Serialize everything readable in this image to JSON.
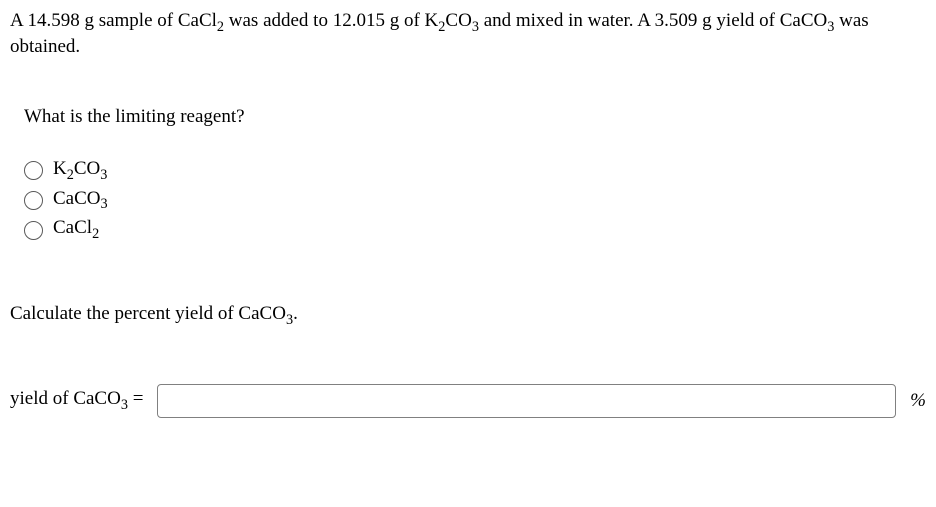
{
  "problem": {
    "prefix": "A ",
    "mass1": "14.598",
    "text1": " g sample of CaCl",
    "sub1": "2",
    "text2": " was added to ",
    "mass2": "12.015",
    "text3": " g of K",
    "sub2": "2",
    "text4": "CO",
    "sub3": "3",
    "text5": " and mixed in water. A ",
    "mass3": "3.509",
    "text6": " g yield of CaCO",
    "sub4": "3",
    "text7": " was obtained."
  },
  "q1": {
    "text": "What is the limiting reagent?"
  },
  "options": [
    {
      "p1": "K",
      "s1": "2",
      "p2": "CO",
      "s2": "3"
    },
    {
      "p1": "CaCO",
      "s1": "3",
      "p2": "",
      "s2": ""
    },
    {
      "p1": "CaCl",
      "s1": "2",
      "p2": "",
      "s2": ""
    }
  ],
  "q2": {
    "t1": "Calculate the percent yield of CaCO",
    "s1": "3",
    "t2": "."
  },
  "answer": {
    "l1": "yield of CaCO",
    "s1": "3",
    "l2": " =",
    "value": "",
    "unit": "%"
  },
  "colors": {
    "text": "#000000",
    "background": "#ffffff",
    "radio_border": "#5a5a5a",
    "input_border": "#808080"
  },
  "typography": {
    "family": "Times New Roman",
    "size_pt": 14
  }
}
